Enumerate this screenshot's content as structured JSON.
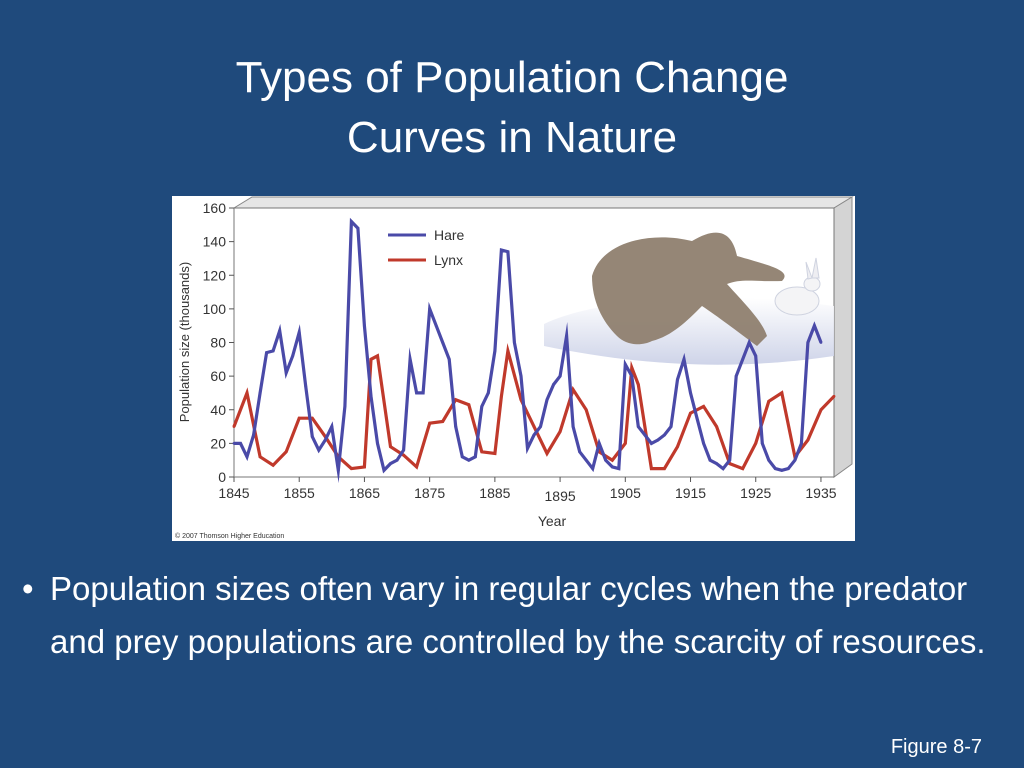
{
  "slide": {
    "title_line1": "Types of Population Change",
    "title_line2": "Curves in Nature",
    "bullet_marker": "•",
    "bullet_text": "Population sizes often vary in regular cycles when the predator and prey populations are controlled by the scarcity of resources.",
    "figure_ref": "Figure 8-7"
  },
  "figure": {
    "copyright": "© 2007 Thomson Higher Education",
    "illustration": "lynx-chasing-hare-illustration"
  },
  "chart_data": {
    "type": "line",
    "xlabel": "Year",
    "ylabel": "Population size (thousands)",
    "xlim": [
      1845,
      1937
    ],
    "ylim": [
      0,
      160
    ],
    "xticks": [
      1845,
      1855,
      1865,
      1875,
      1885,
      1895,
      1905,
      1915,
      1925,
      1935
    ],
    "yticks": [
      0,
      20,
      40,
      60,
      80,
      100,
      120,
      140,
      160
    ],
    "legend_position": "top-center",
    "grid": false,
    "series": [
      {
        "name": "Hare",
        "color": "#4a4aa8",
        "x": [
          1845,
          1846,
          1847,
          1848,
          1849,
          1850,
          1851,
          1852,
          1853,
          1854,
          1855,
          1856,
          1857,
          1858,
          1859,
          1860,
          1861,
          1862,
          1863,
          1864,
          1865,
          1866,
          1867,
          1868,
          1869,
          1870,
          1871,
          1872,
          1873,
          1874,
          1875,
          1876,
          1877,
          1878,
          1879,
          1880,
          1881,
          1882,
          1883,
          1884,
          1885,
          1886,
          1887,
          1888,
          1889,
          1890,
          1891,
          1892,
          1893,
          1894,
          1895,
          1896,
          1897,
          1898,
          1899,
          1900,
          1901,
          1902,
          1903,
          1904,
          1905,
          1906,
          1907,
          1908,
          1909,
          1910,
          1911,
          1912,
          1913,
          1914,
          1915,
          1916,
          1917,
          1918,
          1919,
          1920,
          1921,
          1922,
          1923,
          1924,
          1925,
          1926,
          1927,
          1928,
          1929,
          1930,
          1931,
          1932,
          1933,
          1934,
          1935
        ],
        "values": [
          20,
          20,
          12,
          25,
          50,
          74,
          75,
          87,
          62,
          72,
          86,
          54,
          24,
          16,
          22,
          30,
          4,
          42,
          152,
          148,
          90,
          48,
          20,
          4,
          8,
          10,
          16,
          70,
          50,
          50,
          100,
          90,
          80,
          70,
          30,
          12,
          10,
          12,
          42,
          50,
          75,
          135,
          134,
          80,
          60,
          17,
          25,
          30,
          46,
          55,
          60,
          84,
          30,
          15,
          10,
          5,
          20,
          10,
          6,
          5,
          67,
          60,
          30,
          25,
          20,
          22,
          25,
          30,
          58,
          70,
          50,
          35,
          20,
          10,
          8,
          5,
          10,
          60,
          70,
          80,
          72,
          20,
          10,
          5,
          4,
          5,
          10,
          20,
          80,
          90,
          80
        ],
        "note": "approximate readings"
      },
      {
        "name": "Lynx",
        "color": "#c0392b",
        "x": [
          1845,
          1847,
          1849,
          1851,
          1853,
          1855,
          1857,
          1859,
          1861,
          1863,
          1865,
          1866,
          1867,
          1869,
          1871,
          1873,
          1875,
          1877,
          1879,
          1881,
          1883,
          1885,
          1886,
          1887,
          1889,
          1891,
          1893,
          1895,
          1897,
          1899,
          1901,
          1903,
          1905,
          1906,
          1907,
          1909,
          1911,
          1913,
          1915,
          1917,
          1919,
          1921,
          1923,
          1925,
          1927,
          1929,
          1931,
          1933,
          1935,
          1937
        ],
        "values": [
          30,
          50,
          12,
          7,
          15,
          35,
          35,
          24,
          12,
          5,
          6,
          70,
          72,
          18,
          13,
          6,
          32,
          33,
          46,
          43,
          15,
          14,
          48,
          75,
          46,
          30,
          14,
          27,
          52,
          40,
          15,
          10,
          20,
          65,
          55,
          5,
          5,
          18,
          38,
          42,
          30,
          8,
          5,
          20,
          45,
          50,
          12,
          22,
          40,
          48
        ],
        "note": "approximate readings"
      }
    ]
  }
}
